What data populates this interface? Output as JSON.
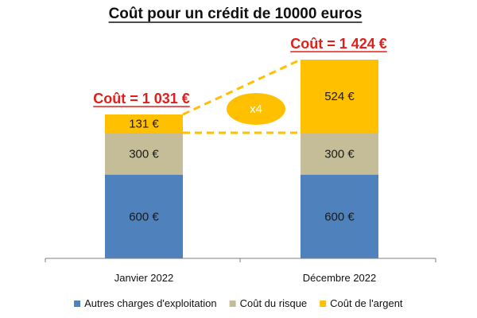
{
  "chart_data": {
    "type": "bar",
    "stacked": true,
    "title": "Coût pour un crédit de 10000 euros",
    "categories": [
      "Janvier 2022",
      "Décembre 2022"
    ],
    "series": [
      {
        "name": "Autres charges d'exploitation",
        "color": "#4f81bd",
        "values": [
          600,
          600
        ],
        "labels": [
          "600 €",
          "600 €"
        ]
      },
      {
        "name": "Coût du risque",
        "color": "#c4bd97",
        "values": [
          300,
          300
        ],
        "labels": [
          "300 €",
          "300 €"
        ]
      },
      {
        "name": "Coût de l'argent",
        "color": "#ffc000",
        "values": [
          131,
          524
        ],
        "labels": [
          "131 €",
          "524 €"
        ]
      }
    ],
    "totals": [
      "Coût = 1 031 €",
      "Coût = 1 424 €"
    ],
    "annotation": "x4",
    "ylim": [
      0,
      1500
    ],
    "grid": false,
    "legend": "bottom"
  }
}
